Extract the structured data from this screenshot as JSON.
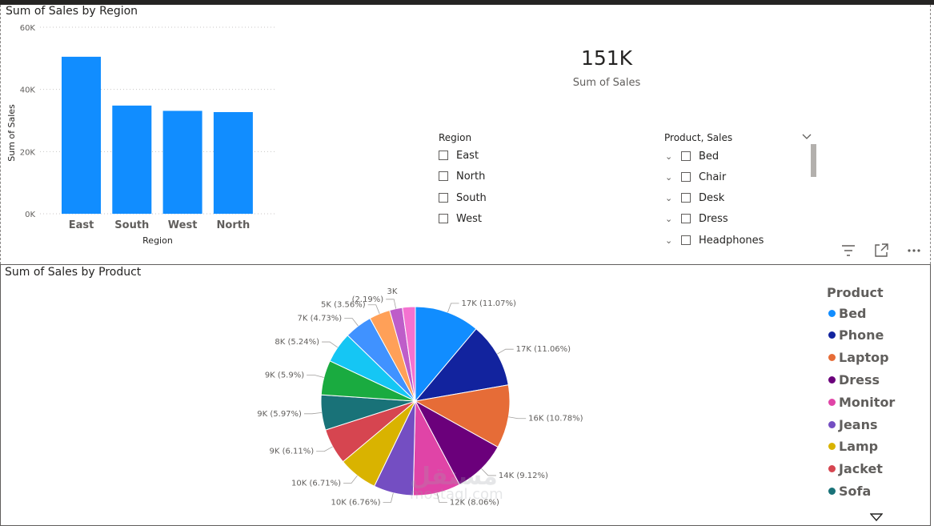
{
  "region_chart": {
    "title": "Sum of Sales by Region",
    "chart_data": {
      "type": "bar",
      "categories": [
        "East",
        "South",
        "West",
        "North"
      ],
      "values": [
        50500,
        34800,
        33100,
        32700
      ],
      "xlabel": "Region",
      "ylabel": "Sum of Sales",
      "ylim": [
        0,
        60000
      ],
      "yticks": [
        0,
        20000,
        40000,
        60000
      ],
      "ytick_labels": [
        "0K",
        "20K",
        "40K",
        "60K"
      ],
      "grid": true,
      "color": "#118DFF"
    }
  },
  "card": {
    "value": "151K",
    "label": "Sum of Sales"
  },
  "region_slicer": {
    "header": "Region",
    "items": [
      "East",
      "North",
      "South",
      "West"
    ]
  },
  "product_slicer": {
    "header": "Product, Sales",
    "items": [
      "Bed",
      "Chair",
      "Desk",
      "Dress",
      "Headphones"
    ]
  },
  "product_chart": {
    "title": "Sum of Sales by Product",
    "legend_title": "Product",
    "legend_items": [
      {
        "name": "Bed",
        "color": "#118DFF"
      },
      {
        "name": "Phone",
        "color": "#12239E"
      },
      {
        "name": "Laptop",
        "color": "#E66C37"
      },
      {
        "name": "Dress",
        "color": "#6B007B"
      },
      {
        "name": "Monitor",
        "color": "#E044A7"
      },
      {
        "name": "Jeans",
        "color": "#744EC2"
      },
      {
        "name": "Lamp",
        "color": "#D9B300"
      },
      {
        "name": "Jacket",
        "color": "#D64550"
      },
      {
        "name": "Sofa",
        "color": "#197278"
      }
    ],
    "chart_data": {
      "type": "pie",
      "slices": [
        {
          "value": 17,
          "pct": 11.07,
          "label": "17K (11.07%)",
          "color": "#118DFF"
        },
        {
          "value": 17,
          "pct": 11.06,
          "label": "17K (11.06%)",
          "color": "#12239E"
        },
        {
          "value": 16,
          "pct": 10.78,
          "label": "16K (10.78%)",
          "color": "#E66C37"
        },
        {
          "value": 14,
          "pct": 9.12,
          "label": "14K (9.12%)",
          "color": "#6B007B"
        },
        {
          "value": 12,
          "pct": 8.06,
          "label": "12K (8.06%)",
          "color": "#E044A7"
        },
        {
          "value": 10,
          "pct": 6.76,
          "label": "10K (6.76%)",
          "color": "#744EC2"
        },
        {
          "value": 10,
          "pct": 6.71,
          "label": "10K (6.71%)",
          "color": "#D9B300"
        },
        {
          "value": 9,
          "pct": 6.11,
          "label": "9K (6.11%)",
          "color": "#D64550"
        },
        {
          "value": 9,
          "pct": 5.97,
          "label": "9K (5.97%)",
          "color": "#197278"
        },
        {
          "value": 9,
          "pct": 5.9,
          "label": "9K (5.9%)",
          "color": "#1AAB40"
        },
        {
          "value": 8,
          "pct": 5.24,
          "label": "8K (5.24%)",
          "color": "#15C6F4"
        },
        {
          "value": 7,
          "pct": 4.73,
          "label": "7K (4.73%)",
          "color": "#4092FF"
        },
        {
          "value": 5,
          "pct": 3.56,
          "label": "5K (3.56%)",
          "color": "#FFA058"
        },
        {
          "value": 3,
          "pct": 2.19,
          "label": "3K (2.19%)",
          "color": "#BE5DC9"
        },
        {
          "value": 3,
          "pct": 2.19,
          "label": "",
          "color": "#F472D0"
        }
      ],
      "label_top_value": "3K",
      "label_top_pct": "(2.19%)"
    }
  },
  "watermark": {
    "logo": "مستقل",
    "url": "mostaql.com"
  }
}
